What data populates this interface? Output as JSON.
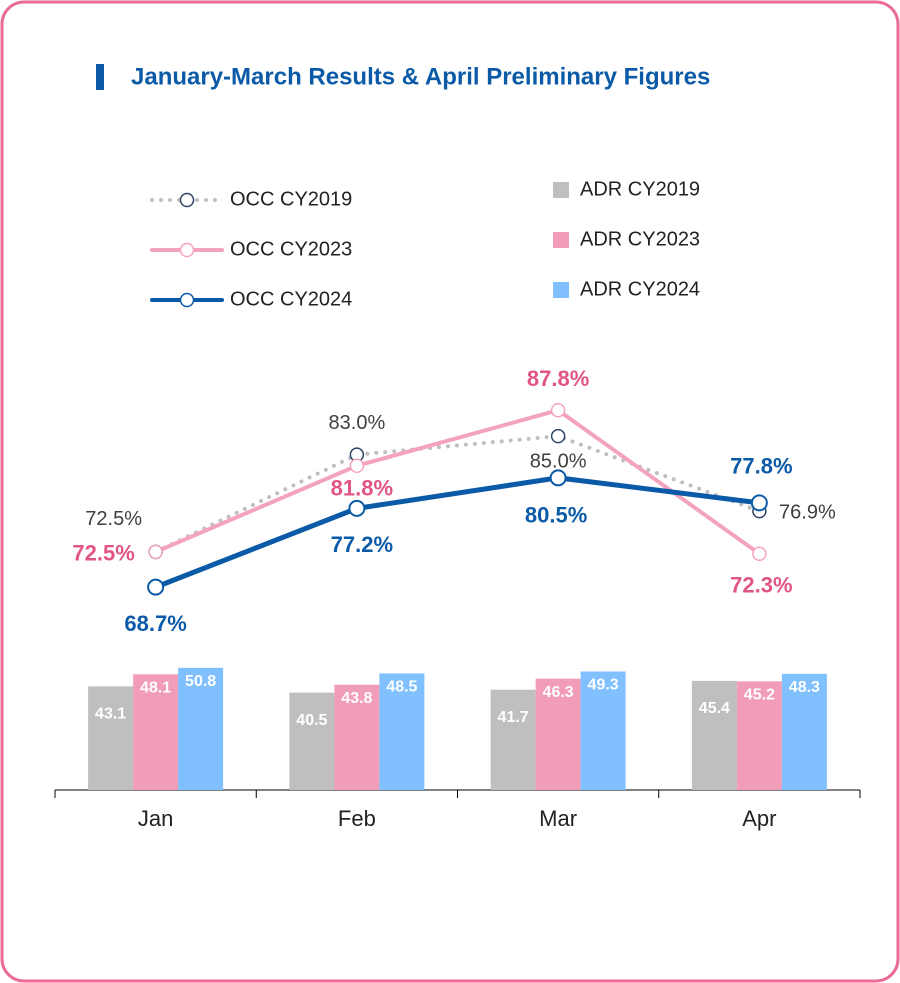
{
  "chart_data": {
    "type": "combo",
    "title": "January-March Results & April Preliminary Figures",
    "categories": [
      "Jan",
      "Feb",
      "Mar",
      "Apr"
    ],
    "ylim": [
      0,
      183
    ],
    "y2lim": [
      46.8,
      94.3
    ],
    "series": [
      {
        "name": "OCC CY2019",
        "kind": "line",
        "axis": "y2",
        "style": "dotted",
        "color": "#bfbfbf",
        "marker_color": "#2f4566",
        "label_color": "#404040",
        "values": [
          72.5,
          83.0,
          85.0,
          76.9
        ],
        "value_labels": [
          "72.5%",
          "83.0%",
          "85.0%",
          "76.9%"
        ]
      },
      {
        "name": "OCC CY2023",
        "kind": "line",
        "axis": "y2",
        "style": "solid",
        "color": "#f4a3bf",
        "marker_color": "#f4a3bf",
        "label_color": "#e05585",
        "values": [
          72.5,
          81.8,
          87.8,
          72.3
        ],
        "value_labels": [
          "72.5%",
          "81.8%",
          "87.8%",
          "72.3%"
        ]
      },
      {
        "name": "OCC CY2024",
        "kind": "line",
        "axis": "y2",
        "style": "solid",
        "color": "#0b5aa8",
        "marker_color": "#0b5aa8",
        "label_color": "#0b5aa8",
        "values": [
          68.7,
          77.2,
          80.5,
          77.8
        ],
        "value_labels": [
          "68.7%",
          "77.2%",
          "80.5%",
          "77.8%"
        ]
      },
      {
        "name": "ADR CY2019",
        "kind": "bar",
        "color": "#bfbfbf",
        "values": [
          43.1,
          40.5,
          41.7,
          45.4
        ]
      },
      {
        "name": "ADR CY2023",
        "kind": "bar",
        "color": "#f29db8",
        "values": [
          48.1,
          43.8,
          46.3,
          45.2
        ]
      },
      {
        "name": "ADR CY2024",
        "kind": "bar",
        "color": "#80c0ff",
        "values": [
          50.8,
          48.5,
          49.3,
          48.3
        ]
      }
    ]
  }
}
